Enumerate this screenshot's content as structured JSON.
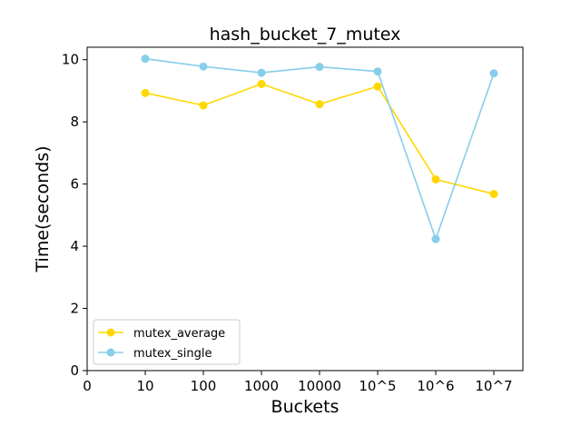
{
  "chart_data": {
    "type": "line",
    "title": "hash_bucket_7_mutex",
    "xlabel": "Buckets",
    "ylabel": "Time(seconds)",
    "x_ticks": [
      "0",
      "10",
      "100",
      "1000",
      "10000",
      "10^5",
      "10^6",
      "10^7"
    ],
    "categories": [
      "10",
      "100",
      "1000",
      "10000",
      "10^5",
      "10^6",
      "10^7"
    ],
    "ylim": [
      0,
      10.4
    ],
    "y_ticks": [
      0,
      2,
      4,
      6,
      8,
      10
    ],
    "grid": false,
    "legend_position": "lower-left",
    "series": [
      {
        "name": "mutex_average",
        "color": "#ffd700",
        "values": [
          8.93,
          8.53,
          9.22,
          8.57,
          9.14,
          6.15,
          5.68
        ]
      },
      {
        "name": "mutex_single",
        "color": "#87ceeb",
        "values": [
          10.03,
          9.78,
          9.58,
          9.77,
          9.62,
          4.23,
          9.56
        ]
      }
    ]
  }
}
